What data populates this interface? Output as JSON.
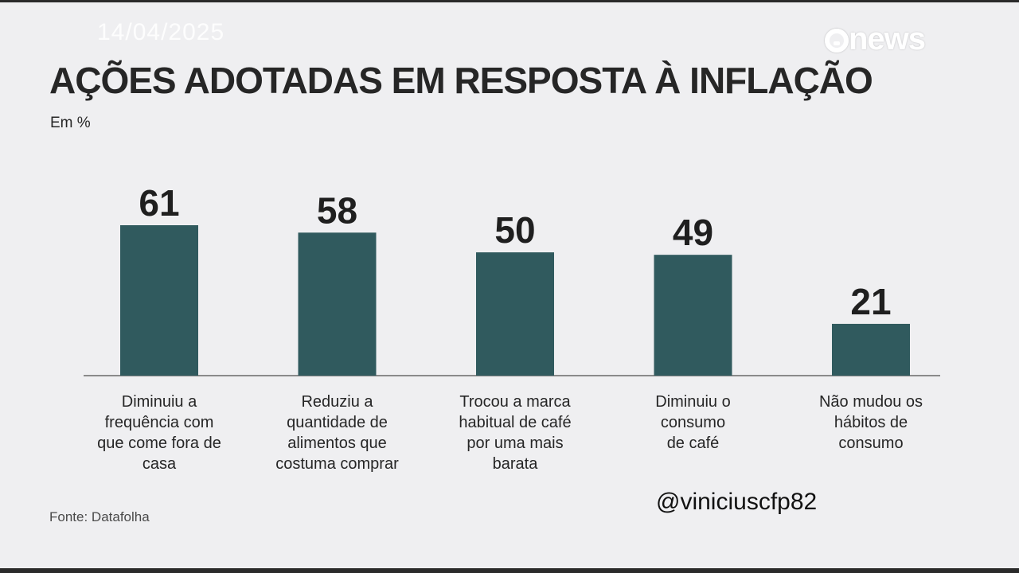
{
  "overlay": {
    "date": "14/04/2025",
    "logo_text": "news",
    "handle": "@viniciuscfp82"
  },
  "colors": {
    "bar": "#305a5e",
    "background": "#efeff1",
    "axis": "#8a8a8a"
  },
  "chart_data": {
    "type": "bar",
    "title": "AÇÕES ADOTADAS EM RESPOSTA À INFLAÇÃO",
    "unit_label": "Em %",
    "categories": [
      [
        "Diminuiu a",
        "frequência com",
        "que come fora de",
        "casa"
      ],
      [
        "Reduziu a",
        "quantidade de",
        "alimentos que",
        "costuma comprar"
      ],
      [
        "Trocou a marca",
        "habitual de café",
        "por uma mais",
        "barata"
      ],
      [
        "Diminuiu o",
        "consumo",
        "de café"
      ],
      [
        "Não mudou os",
        "hábitos de",
        "consumo"
      ]
    ],
    "values": [
      61,
      58,
      50,
      49,
      21
    ],
    "ylim": [
      0,
      61
    ],
    "grid": false,
    "legend": "none",
    "source": "Fonte: Datafolha"
  }
}
